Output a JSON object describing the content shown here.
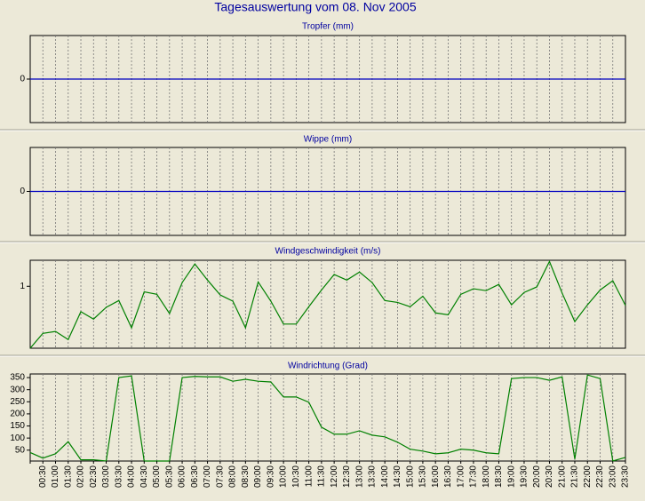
{
  "title": "Tagesauswertung vom 08. Nov 2005",
  "chart_data": [
    {
      "type": "line",
      "title": "Tropfer (mm)",
      "color": "#0000c0",
      "ylim": [
        -1,
        1
      ],
      "yticks": [
        0
      ],
      "grid": true,
      "values": [
        0,
        0,
        0,
        0,
        0,
        0,
        0,
        0,
        0,
        0,
        0,
        0,
        0,
        0,
        0,
        0,
        0,
        0,
        0,
        0,
        0,
        0,
        0,
        0,
        0,
        0,
        0,
        0,
        0,
        0,
        0,
        0,
        0,
        0,
        0,
        0,
        0,
        0,
        0,
        0,
        0,
        0,
        0,
        0,
        0,
        0,
        0,
        0
      ]
    },
    {
      "type": "line",
      "title": "Wippe (mm)",
      "color": "#0000c0",
      "ylim": [
        -1,
        1
      ],
      "yticks": [
        0
      ],
      "grid": true,
      "values": [
        0,
        0,
        0,
        0,
        0,
        0,
        0,
        0,
        0,
        0,
        0,
        0,
        0,
        0,
        0,
        0,
        0,
        0,
        0,
        0,
        0,
        0,
        0,
        0,
        0,
        0,
        0,
        0,
        0,
        0,
        0,
        0,
        0,
        0,
        0,
        0,
        0,
        0,
        0,
        0,
        0,
        0,
        0,
        0,
        0,
        0,
        0,
        0
      ]
    },
    {
      "type": "line",
      "title": "Windgeschwindigkeit (m/s)",
      "color": "#008000",
      "ylim": [
        0,
        1.42
      ],
      "yticks": [
        1
      ],
      "grid": true,
      "values": [
        0,
        0.24,
        0.27,
        0.14,
        0.59,
        0.47,
        0.66,
        0.77,
        0.33,
        0.91,
        0.87,
        0.56,
        1.06,
        1.36,
        1.1,
        0.86,
        0.76,
        0.33,
        1.07,
        0.76,
        0.39,
        0.39,
        0.67,
        0.94,
        1.19,
        1.1,
        1.23,
        1.06,
        0.77,
        0.74,
        0.67,
        0.84,
        0.57,
        0.54,
        0.87,
        0.96,
        0.93,
        1.03,
        0.7,
        0.9,
        0.99,
        1.4,
        0.89,
        0.43,
        0.7,
        0.94,
        1.09,
        0.69
      ]
    },
    {
      "type": "line",
      "title": "Windrichtung (Grad)",
      "color": "#008000",
      "ylim": [
        5,
        365
      ],
      "yticks": [
        50,
        100,
        150,
        200,
        250,
        300,
        350
      ],
      "grid": true,
      "categories": [
        null,
        "00:30",
        "01:00",
        "01:30",
        "02:00",
        "02:30",
        "03:00",
        "03:30",
        "04:00",
        "04:30",
        "05:00",
        "05:30",
        "06:00",
        "06:30",
        "07:00",
        "07:30",
        "08:00",
        "08:30",
        "09:00",
        "09:30",
        "10:00",
        "10:30",
        "11:00",
        "11:30",
        "12:00",
        "12:30",
        "13:00",
        "13:30",
        "14:00",
        "14:30",
        "15:00",
        "15:30",
        "16:00",
        "16:30",
        "17:00",
        "17:30",
        "18:00",
        "18:30",
        "19:00",
        "19:30",
        "20:00",
        "20:30",
        "21:00",
        "21:30",
        "22:00",
        "22:30",
        "23:00",
        "23:30"
      ],
      "values": [
        40,
        17,
        35,
        85,
        10,
        10,
        5,
        350,
        357,
        5,
        5,
        5,
        350,
        355,
        353,
        353,
        335,
        343,
        335,
        332,
        270,
        270,
        248,
        145,
        116,
        116,
        130,
        112,
        105,
        83,
        54,
        46,
        35,
        39,
        54,
        50,
        39,
        35,
        346,
        350,
        350,
        339,
        353,
        13,
        361,
        346,
        5,
        20
      ]
    }
  ]
}
